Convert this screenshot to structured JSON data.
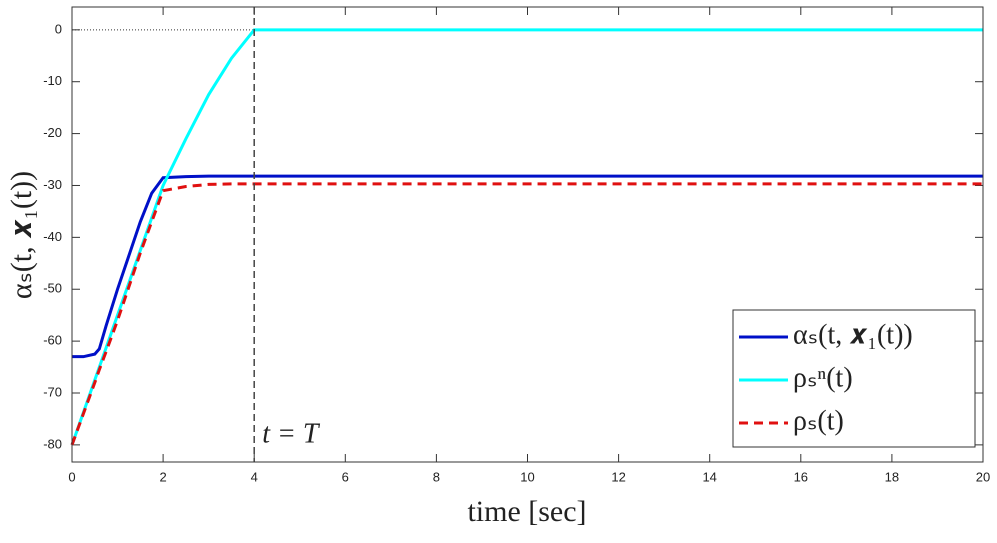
{
  "chart_data": {
    "type": "line",
    "x_label": "time [sec]",
    "y_label": "αₛ(t, 𝒙₁(t))",
    "x": [
      0,
      0.25,
      0.5,
      0.6,
      0.75,
      1,
      1.25,
      1.5,
      1.75,
      2,
      2.5,
      3,
      3.5,
      4,
      6,
      8,
      10,
      12,
      14,
      16,
      18,
      20
    ],
    "series": [
      {
        "name": "αₛ(t, 𝒙₁(t))",
        "color": "#0010c8",
        "dash": false,
        "values": [
          -63,
          -63,
          -62.5,
          -61.5,
          -57,
          -50,
          -43.5,
          -37,
          -31.5,
          -28.5,
          -28.3,
          -28.2,
          -28.2,
          -28.2,
          -28.2,
          -28.2,
          -28.2,
          -28.2,
          -28.2,
          -28.2,
          -28.2,
          -28.2
        ]
      },
      {
        "name": "ρₛⁿ(t)",
        "color": "#00ffff",
        "dash": false,
        "values": [
          -80,
          -73.75,
          -67.5,
          -65,
          -61.25,
          -55,
          -48.75,
          -42.5,
          -36.25,
          -30,
          -21,
          -12.5,
          -5.5,
          0,
          0,
          0,
          0,
          0,
          0,
          0,
          0,
          0
        ]
      },
      {
        "name": "ρₛ(t)",
        "color": "#e01010",
        "dash": true,
        "values": [
          -80,
          -74,
          -68,
          -65.5,
          -62,
          -56,
          -49.5,
          -43,
          -37,
          -31,
          -30.2,
          -29.8,
          -29.7,
          -29.7,
          -29.7,
          -29.7,
          -29.7,
          -29.7,
          -29.7,
          -29.7,
          -29.7,
          -29.7
        ]
      }
    ],
    "vline": 4,
    "annotation": "t = T",
    "xlim": [
      0,
      20
    ],
    "ylim": [
      -83.3,
      4.4
    ],
    "xticks": [
      0,
      2,
      4,
      6,
      8,
      10,
      12,
      14,
      16,
      18,
      20
    ],
    "yticks": [
      0,
      -10,
      -20,
      -30,
      -40,
      -50,
      -60,
      -70,
      -80
    ],
    "legend": "lower right"
  }
}
